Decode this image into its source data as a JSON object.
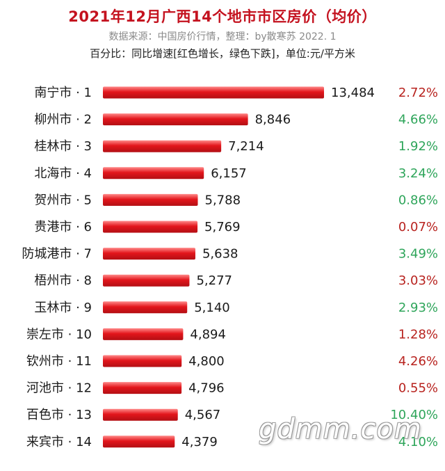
{
  "header": {
    "title": "2021年12月广西14个地市市区房价（均价）",
    "source": "数据来源：中国房价行情，整理：by散寒苏  2022. 1",
    "note": "百分比：同比增速[红色增长，绿色下跌]，单位:元/平方米"
  },
  "watermark": "gdmm.com",
  "colors": {
    "title": "#c4121f",
    "bar": "#e3161c",
    "increase": "#b8231f",
    "decrease": "#2ea55a"
  },
  "chart_data": {
    "type": "bar",
    "orientation": "horizontal",
    "categories": [
      "南宁市 · 1",
      "柳州市 · 2",
      "桂林市 · 3",
      "北海市 · 4",
      "贺州市 · 5",
      "贵港市 · 6",
      "防城港市 · 7",
      "梧州市 · 8",
      "玉林市 · 9",
      "崇左市 · 10",
      "钦州市 · 11",
      "河池市 · 12",
      "百色市 · 13",
      "来宾市 · 14"
    ],
    "values": [
      13484,
      8846,
      7214,
      6157,
      5788,
      5769,
      5638,
      5277,
      5140,
      4894,
      4800,
      4796,
      4567,
      4379
    ],
    "value_labels": [
      "13,484",
      "8,846",
      "7,214",
      "6,157",
      "5,788",
      "5,769",
      "5,638",
      "5,277",
      "5,140",
      "4,894",
      "4,800",
      "4,796",
      "4,567",
      "4,379"
    ],
    "yoy_growth": [
      "2.72%",
      "4.66%",
      "1.92%",
      "3.24%",
      "0.86%",
      "0.07%",
      "3.49%",
      "3.03%",
      "2.93%",
      "1.28%",
      "4.26%",
      "0.55%",
      "10.40%",
      "4.10%"
    ],
    "yoy_direction": [
      "up",
      "down",
      "down",
      "down",
      "down",
      "up",
      "down",
      "up",
      "down",
      "up",
      "up",
      "up",
      "down",
      "down"
    ],
    "xlim": [
      0,
      13484
    ],
    "grid": false,
    "legend": "none"
  }
}
